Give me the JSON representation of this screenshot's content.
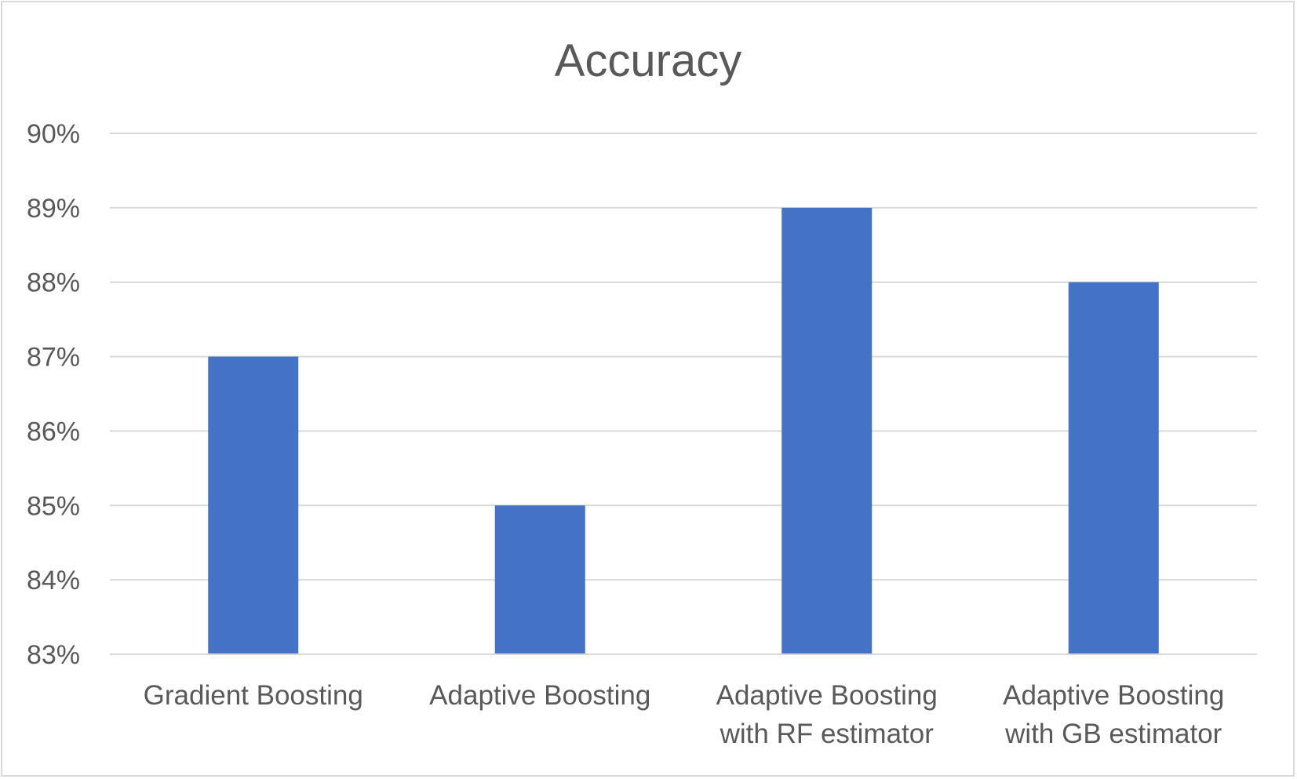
{
  "chart_data": {
    "type": "bar",
    "title": "Accuracy",
    "xlabel": "",
    "ylabel": "",
    "categories": [
      [
        "Gradient Boosting"
      ],
      [
        "Adaptive Boosting"
      ],
      [
        "Adaptive Boosting",
        "with RF estimator"
      ],
      [
        "Adaptive Boosting",
        "with GB estimator"
      ]
    ],
    "values": [
      0.87,
      0.85,
      0.89,
      0.88
    ],
    "ylim": [
      0.83,
      0.9
    ],
    "yticks": [
      0.83,
      0.84,
      0.85,
      0.86,
      0.87,
      0.88,
      0.89,
      0.9
    ],
    "ytick_labels": [
      "83%",
      "84%",
      "85%",
      "86%",
      "87%",
      "88%",
      "89%",
      "90%"
    ],
    "grid": true,
    "legend": "none",
    "colors": {
      "bar": "#4472c4",
      "grid": "#d9d9d9",
      "text": "#595959",
      "border": "#d9d9d9"
    }
  }
}
